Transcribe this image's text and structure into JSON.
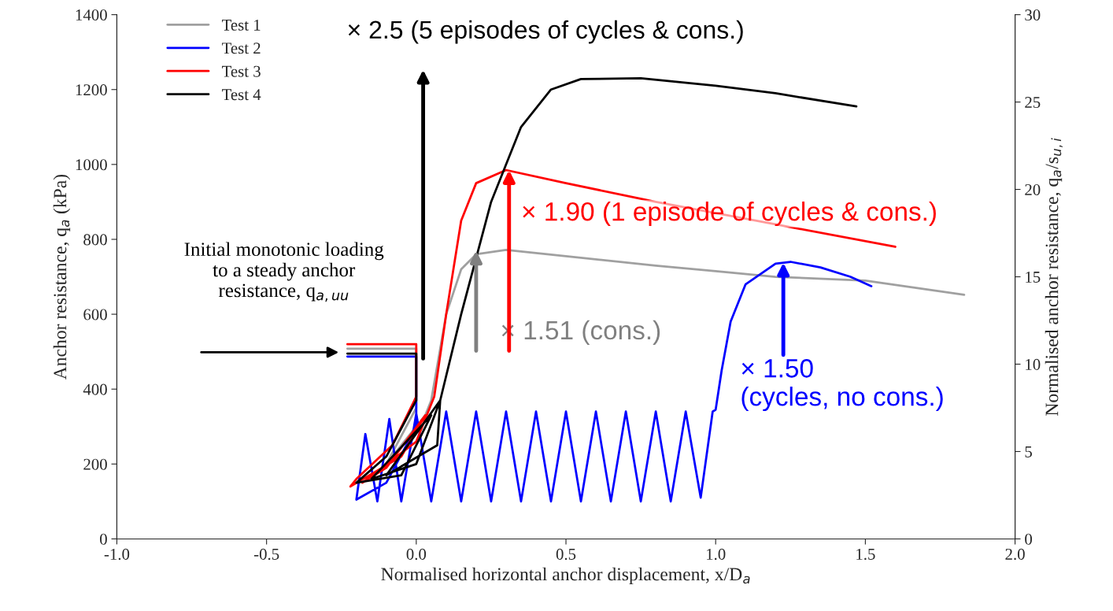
{
  "chart_data": {
    "type": "line",
    "xlabel": "Normalised horizontal anchor displacement, x/D$_{a}$",
    "ylabel": "Anchor resistance, q$_{a}$ (kPa)",
    "y2label": "Normalised anchor resistance, q$_{a}$/s$_{u,i}$",
    "xlim": [
      -1.0,
      2.0
    ],
    "xticks": [
      {
        "value": -1.0,
        "label": "-1.0"
      },
      {
        "value": -0.5,
        "label": "-0.5"
      },
      {
        "value": 0.0,
        "label": "0.0"
      },
      {
        "value": 0.5,
        "label": "0.5"
      },
      {
        "value": 1.0,
        "label": "1.0"
      },
      {
        "value": 1.5,
        "label": "1.5"
      },
      {
        "value": 2.0,
        "label": "2.0"
      }
    ],
    "ylim": [
      0,
      1400
    ],
    "yticks": [
      0,
      200,
      400,
      600,
      800,
      1000,
      1200,
      1400
    ],
    "y2lim": [
      0,
      30
    ],
    "y2ticks": [
      0,
      5,
      10,
      15,
      20,
      25,
      30
    ],
    "grid": false,
    "legend": "top left",
    "marker": "none",
    "line_style": "solid",
    "series": [
      {
        "name": "Test 1",
        "color": "#a0a0a0",
        "x": [
          -0.23,
          0,
          0,
          -0.1,
          0.03,
          0.05,
          0.1,
          0.15,
          0.2,
          0.3,
          0.5,
          0.8,
          1.0,
          1.2,
          1.5,
          1.83
        ],
        "values": [
          508,
          508,
          350,
          200,
          330,
          370,
          600,
          720,
          760,
          772,
          755,
          730,
          715,
          700,
          690,
          652
        ]
      },
      {
        "name": "Test 2",
        "color": "#0000ff",
        "x": [
          -0.23,
          0,
          0,
          -0.1,
          -0.2,
          -0.17,
          -0.13,
          -0.09,
          -0.05,
          0.0,
          0.05,
          0.1,
          0.15,
          0.2,
          0.25,
          0.3,
          0.35,
          0.4,
          0.45,
          0.5,
          0.55,
          0.6,
          0.65,
          0.7,
          0.75,
          0.8,
          0.85,
          0.9,
          0.95,
          0.99,
          1.0,
          1.02,
          1.05,
          1.1,
          1.2,
          1.25,
          1.35,
          1.45,
          1.52
        ],
        "values": [
          487,
          487,
          300,
          150,
          105,
          280,
          100,
          320,
          100,
          335,
          100,
          340,
          100,
          340,
          100,
          340,
          100,
          340,
          100,
          340,
          100,
          340,
          100,
          340,
          100,
          340,
          100,
          340,
          110,
          340,
          345,
          450,
          580,
          680,
          735,
          740,
          725,
          700,
          675
        ]
      },
      {
        "name": "Test 3",
        "color": "#ff0000",
        "x": [
          -0.23,
          0,
          0,
          -0.08,
          -0.2,
          -0.22,
          -0.05,
          0.03,
          -0.1,
          -0.18,
          0.0,
          0.06,
          0.1,
          0.15,
          0.2,
          0.3,
          0.5,
          0.8,
          1.2,
          1.6
        ],
        "values": [
          520,
          520,
          380,
          250,
          160,
          140,
          220,
          330,
          190,
          150,
          260,
          380,
          600,
          850,
          950,
          985,
          950,
          900,
          840,
          780
        ]
      },
      {
        "name": "Test 4",
        "color": "#000000",
        "x": [
          -0.23,
          0,
          0,
          -0.1,
          -0.2,
          -0.05,
          0.05,
          -0.15,
          0.0,
          0.08,
          -0.1,
          0.07,
          0.08,
          0.15,
          0.25,
          0.35,
          0.45,
          0.55,
          0.75,
          1.0,
          1.2,
          1.47
        ],
        "values": [
          495,
          495,
          370,
          220,
          150,
          170,
          330,
          160,
          200,
          370,
          170,
          250,
          370,
          600,
          900,
          1100,
          1200,
          1228,
          1230,
          1210,
          1190,
          1155
        ]
      }
    ],
    "annotations": [
      {
        "text": "× 1.51 (cons.)",
        "x": 0.2,
        "y": 770
      },
      {
        "text": "× 1.90 (1 episode of cycles & cons.)",
        "x": 0.31,
        "y": 985
      },
      {
        "text": "× 1.50\n(cycles, no cons.)",
        "x": 1.02,
        "y": 450
      },
      "× 2.5 (5 episodes of cycles & cons.)",
      "Initial monotonic loading\nto a steady anchor\nresistance, q$_{a,uu}$"
    ]
  }
}
